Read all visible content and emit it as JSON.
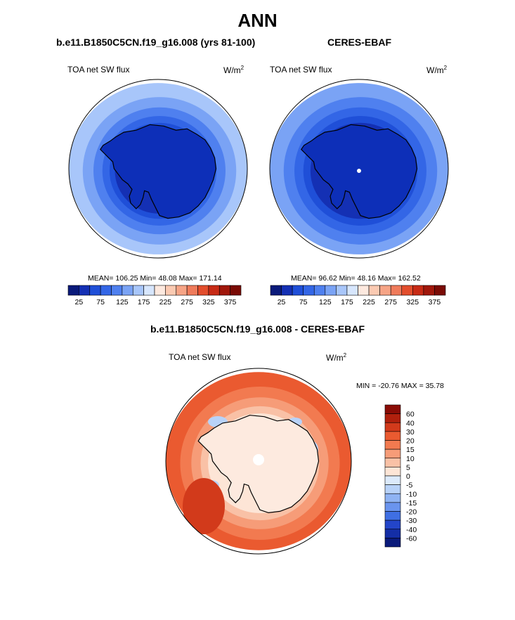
{
  "page": {
    "title": "ANN",
    "bottom_panel_title": "b.e11.B1850C5CN.f19_g16.008 - CERES-EBAF"
  },
  "chart_data": [
    {
      "type": "map",
      "title": "b.e11.B1850C5CN.f19_g16.008 (yrs 81-100)",
      "left_label": "TOA net SW flux",
      "units": "W/m",
      "units_exp": "2",
      "stats": {
        "mean": "106.25",
        "min": "48.08",
        "max": "171.14"
      },
      "stats_text": "MEAN= 106.25  Min=  48.08  Max= 171.14",
      "colorbar": {
        "levels": [
          25,
          50,
          75,
          100,
          125,
          150,
          175,
          200,
          225,
          250,
          275,
          300,
          325,
          350,
          375
        ],
        "tick_labels": [
          "25",
          "75",
          "125",
          "175",
          "225",
          "275",
          "325",
          "375"
        ],
        "colors": [
          "#0a1a7a",
          "#1430b4",
          "#1f4fd8",
          "#3366e6",
          "#4f80ef",
          "#7aa3f5",
          "#a8c6fa",
          "#d7e6fd",
          "#fde9df",
          "#fbcab2",
          "#f6a486",
          "#ef7b5b",
          "#e24d2c",
          "#c72a15",
          "#a0170b",
          "#7a0b05"
        ]
      },
      "bands": [
        "#a8c6fa",
        "#7aa3f5",
        "#4f80ef",
        "#3366e6",
        "#1f4fd8",
        "#1430b4"
      ]
    },
    {
      "type": "map",
      "title": "CERES-EBAF",
      "left_label": "TOA net SW flux",
      "units": "W/m",
      "units_exp": "2",
      "stats": {
        "mean": "96.62",
        "min": "48.16",
        "max": "162.52"
      },
      "stats_text": "MEAN=  96.62  Min=  48.16  Max= 162.52",
      "colorbar": {
        "levels": [
          25,
          50,
          75,
          100,
          125,
          150,
          175,
          200,
          225,
          250,
          275,
          300,
          325,
          350,
          375
        ],
        "tick_labels": [
          "25",
          "75",
          "125",
          "175",
          "225",
          "275",
          "325",
          "375"
        ],
        "colors": [
          "#0a1a7a",
          "#1430b4",
          "#1f4fd8",
          "#3366e6",
          "#4f80ef",
          "#7aa3f5",
          "#a8c6fa",
          "#d7e6fd",
          "#fde9df",
          "#fbcab2",
          "#f6a486",
          "#ef7b5b",
          "#e24d2c",
          "#c72a15",
          "#a0170b",
          "#7a0b05"
        ]
      },
      "bands": [
        "#7aa3f5",
        "#4f80ef",
        "#3366e6",
        "#1f4fd8",
        "#1430b4",
        "#1430b4"
      ]
    },
    {
      "type": "map",
      "title": "b.e11.B1850C5CN.f19_g16.008 - CERES-EBAF",
      "left_label": "TOA net SW flux",
      "units": "W/m",
      "units_exp": "2",
      "stats": {
        "min": "-20.76",
        "max": "35.78"
      },
      "stats_text": "MIN = -20.76 MAX =  35.78",
      "colorbar": {
        "levels": [
          60,
          40,
          30,
          20,
          15,
          10,
          5,
          0,
          -5,
          -10,
          -15,
          -20,
          -30,
          -40,
          -60
        ],
        "tick_labels": [
          "60",
          "40",
          "30",
          "20",
          "15",
          "10",
          "5",
          "0",
          "-5",
          "-10",
          "-15",
          "-20",
          "-30",
          "-40",
          "-60"
        ],
        "colors": [
          "#8a0c06",
          "#b0200d",
          "#d23a1b",
          "#ea5a30",
          "#f27a50",
          "#f69c78",
          "#f9c1a6",
          "#fde5d6",
          "#dceafb",
          "#b8d2f8",
          "#8fb3f3",
          "#6a94ee",
          "#3f6fe3",
          "#2345c9",
          "#142ea6",
          "#0a1a7a"
        ]
      },
      "bands": [
        "#ea5a30",
        "#f27a50",
        "#f69c78",
        "#f9c1a6",
        "#fde5d6",
        "#fde5d6"
      ]
    }
  ]
}
